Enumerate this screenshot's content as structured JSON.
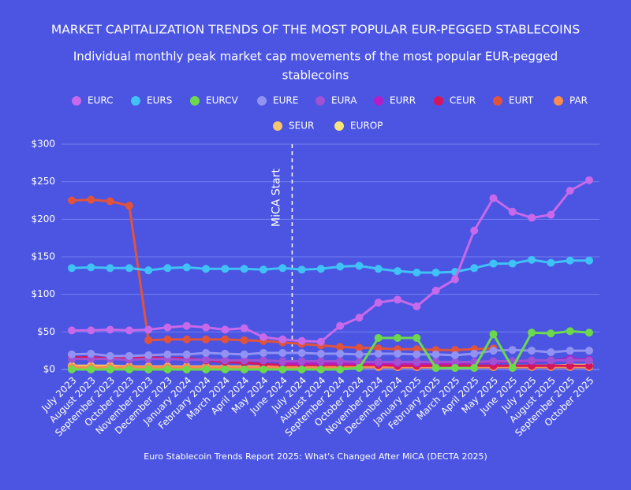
{
  "chart_data": {
    "type": "line",
    "title": "MARKET CAPITALIZATION TRENDS OF THE MOST POPULAR EUR-PEGGED STABLECOINS",
    "subtitle": [
      "Individual monthly peak market cap movements of the most popular EUR-pegged",
      "stablecoins"
    ],
    "annotation": "MiCA Start",
    "caption": "Euro Stablecoin Trends Report 2025: What's Changed After MiCA (DECTA 2025)",
    "categories": [
      "July 2023",
      "August 2023",
      "September 2023",
      "October 2023",
      "November 2023",
      "December 2023",
      "January 2024",
      "February 2024",
      "March 2024",
      "April 2024",
      "May 2024",
      "June 2024",
      "July 2024",
      "August 2024",
      "September 2024",
      "October 2024",
      "November 2024",
      "December 2024",
      "January 2025",
      "February 2025",
      "March 2025",
      "April 2025",
      "May 2025",
      "June 2025",
      "July 2025",
      "August 2025",
      "September 2025",
      "October 2025"
    ],
    "ylim": [
      0,
      300
    ],
    "yticks": [
      {
        "value": 0,
        "label": "$0"
      },
      {
        "value": 50,
        "label": "$50"
      },
      {
        "value": 100,
        "label": "$100"
      },
      {
        "value": 150,
        "label": "$150"
      },
      {
        "value": 200,
        "label": "$200"
      },
      {
        "value": 250,
        "label": "$250"
      },
      {
        "value": 300,
        "label": "$300"
      }
    ],
    "grid": true,
    "series": [
      {
        "name": "EURC",
        "color": "#c769ea",
        "values": [
          52,
          52,
          53,
          52,
          53,
          56,
          58,
          56,
          53,
          55,
          43,
          40,
          38,
          37,
          58,
          69,
          89,
          93,
          84,
          105,
          120,
          185,
          228,
          210,
          202,
          206,
          238,
          252
        ]
      },
      {
        "name": "EURS",
        "color": "#40c2f6",
        "values": [
          135,
          136,
          135,
          135,
          132,
          135,
          136,
          134,
          134,
          134,
          133,
          135,
          133,
          134,
          137,
          138,
          134,
          131,
          129,
          129,
          130,
          135,
          141,
          141,
          146,
          142,
          145,
          145
        ]
      },
      {
        "name": "EURCV",
        "color": "#6cd94c",
        "values": [
          0,
          0,
          0,
          0,
          0,
          0,
          0,
          0,
          0,
          0,
          0,
          0,
          0,
          0,
          0,
          2,
          42,
          42,
          42,
          2,
          2,
          2,
          47,
          2,
          49,
          48,
          51,
          49
        ]
      },
      {
        "name": "EURE",
        "color": "#9292f2",
        "values": [
          20,
          21,
          18,
          18,
          19,
          20,
          20,
          22,
          21,
          20,
          22,
          22,
          22,
          21,
          21,
          20,
          21,
          21,
          20,
          20,
          19,
          21,
          25,
          26,
          25,
          23,
          25,
          25
        ]
      },
      {
        "name": "EURA",
        "color": "#a052d4",
        "values": [
          14,
          14,
          14,
          13,
          14,
          14,
          13,
          13,
          12,
          12,
          12,
          11,
          11,
          11,
          11,
          10,
          10,
          10,
          10,
          10,
          10,
          10,
          11,
          11,
          12,
          12,
          12,
          12
        ]
      },
      {
        "name": "EURR",
        "color": "#b41ec4",
        "values": [
          null,
          null,
          null,
          null,
          null,
          null,
          null,
          null,
          null,
          null,
          null,
          8,
          8,
          8,
          8,
          8,
          8,
          8,
          8,
          8,
          8,
          9,
          10,
          10,
          11,
          12,
          14,
          13
        ]
      },
      {
        "name": "CEUR",
        "color": "#d6165c",
        "values": [
          16,
          16,
          15,
          15,
          16,
          15,
          15,
          12,
          10,
          9,
          7,
          6,
          6,
          6,
          6,
          6,
          6,
          5,
          5,
          5,
          5,
          5,
          5,
          5,
          5,
          5,
          5,
          5
        ]
      },
      {
        "name": "EURT",
        "color": "#e2533c",
        "values": [
          225,
          226,
          224,
          218,
          39,
          40,
          40,
          40,
          40,
          39,
          38,
          36,
          34,
          32,
          30,
          29,
          28,
          27,
          27,
          26,
          26,
          27,
          28,
          null,
          null,
          null,
          null,
          null
        ]
      },
      {
        "name": "PAR",
        "color": "#f78c50",
        "values": [
          3,
          3,
          3,
          3,
          3,
          3,
          3,
          3,
          3,
          3,
          3,
          3,
          3,
          3,
          3,
          3,
          3,
          3,
          3,
          3,
          3,
          3,
          3,
          3,
          3,
          3,
          3,
          3
        ]
      },
      {
        "name": "SEUR",
        "color": "#f7c66c",
        "values": [
          5,
          5,
          5,
          4,
          4,
          4,
          4,
          4,
          4,
          4,
          4,
          4,
          4,
          4,
          4,
          4,
          4,
          4,
          4,
          4,
          4,
          4,
          4,
          4,
          5,
          5,
          5,
          5
        ]
      },
      {
        "name": "EUROP",
        "color": "#f5e47c",
        "values": [
          3,
          3,
          2,
          2,
          2,
          2,
          2,
          2,
          2,
          2,
          3,
          3,
          3,
          3,
          3,
          3,
          3,
          3,
          3,
          3,
          3,
          3,
          3,
          5,
          5,
          5,
          6,
          6
        ]
      }
    ]
  }
}
